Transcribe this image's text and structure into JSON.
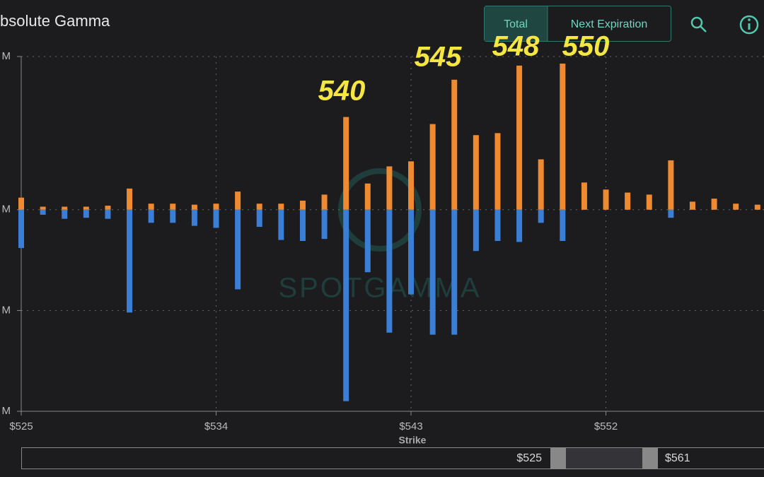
{
  "chart_data": {
    "type": "bar",
    "title": "bsolute Gamma",
    "buttons": [
      "Total",
      "Next Expiration"
    ],
    "watermark": "SPOTGAMMA",
    "annotations": [
      "540",
      "545",
      "548",
      "550"
    ],
    "x_label": "Strike",
    "range_labels": [
      "$525",
      "$561"
    ],
    "x": [
      525,
      526,
      527,
      528,
      529,
      530,
      531,
      532,
      533,
      534,
      535,
      536,
      537,
      538,
      539,
      540,
      541,
      542,
      543,
      544,
      545,
      546,
      547,
      548,
      549,
      550,
      551,
      552,
      553,
      554,
      555,
      556,
      557,
      558,
      559
    ],
    "xlim": [
      525,
      559.3
    ],
    "xticks": [
      {
        "value": 525,
        "label": "$525"
      },
      {
        "value": 534,
        "label": "$534"
      },
      {
        "value": 543,
        "label": "$543"
      },
      {
        "value": 552,
        "label": "$552"
      }
    ],
    "ylim": [
      -2,
      1.52
    ],
    "yticks": [
      {
        "value": -2,
        "label": "M"
      },
      {
        "value": -1,
        "label": "M"
      },
      {
        "value": 0,
        "label": "M"
      },
      {
        "value": 1.52,
        "label": "M"
      }
    ],
    "grid": true,
    "series": [
      {
        "color": "#f08a30",
        "values": [
          0.12,
          0.03,
          0.03,
          0.03,
          0.04,
          0.21,
          0.06,
          0.06,
          0.05,
          0.06,
          0.18,
          0.06,
          0.06,
          0.09,
          0.15,
          0.92,
          0.26,
          0.43,
          0.48,
          0.85,
          1.29,
          0.74,
          0.76,
          1.43,
          0.5,
          1.45,
          0.27,
          0.2,
          0.17,
          0.15,
          0.49,
          0.08,
          0.11,
          0.06,
          0.05
        ]
      },
      {
        "color": "#3a7fd5",
        "values": [
          -0.38,
          -0.05,
          -0.09,
          -0.08,
          -0.09,
          -1.02,
          -0.13,
          -0.13,
          -0.16,
          -0.18,
          -0.79,
          -0.17,
          -0.3,
          -0.31,
          -0.29,
          -1.9,
          -0.62,
          -1.22,
          -0.84,
          -1.24,
          -1.24,
          -0.41,
          -0.31,
          -0.32,
          -0.13,
          -0.31,
          0,
          0,
          0,
          0,
          -0.08,
          0,
          0,
          0,
          0
        ]
      }
    ]
  }
}
